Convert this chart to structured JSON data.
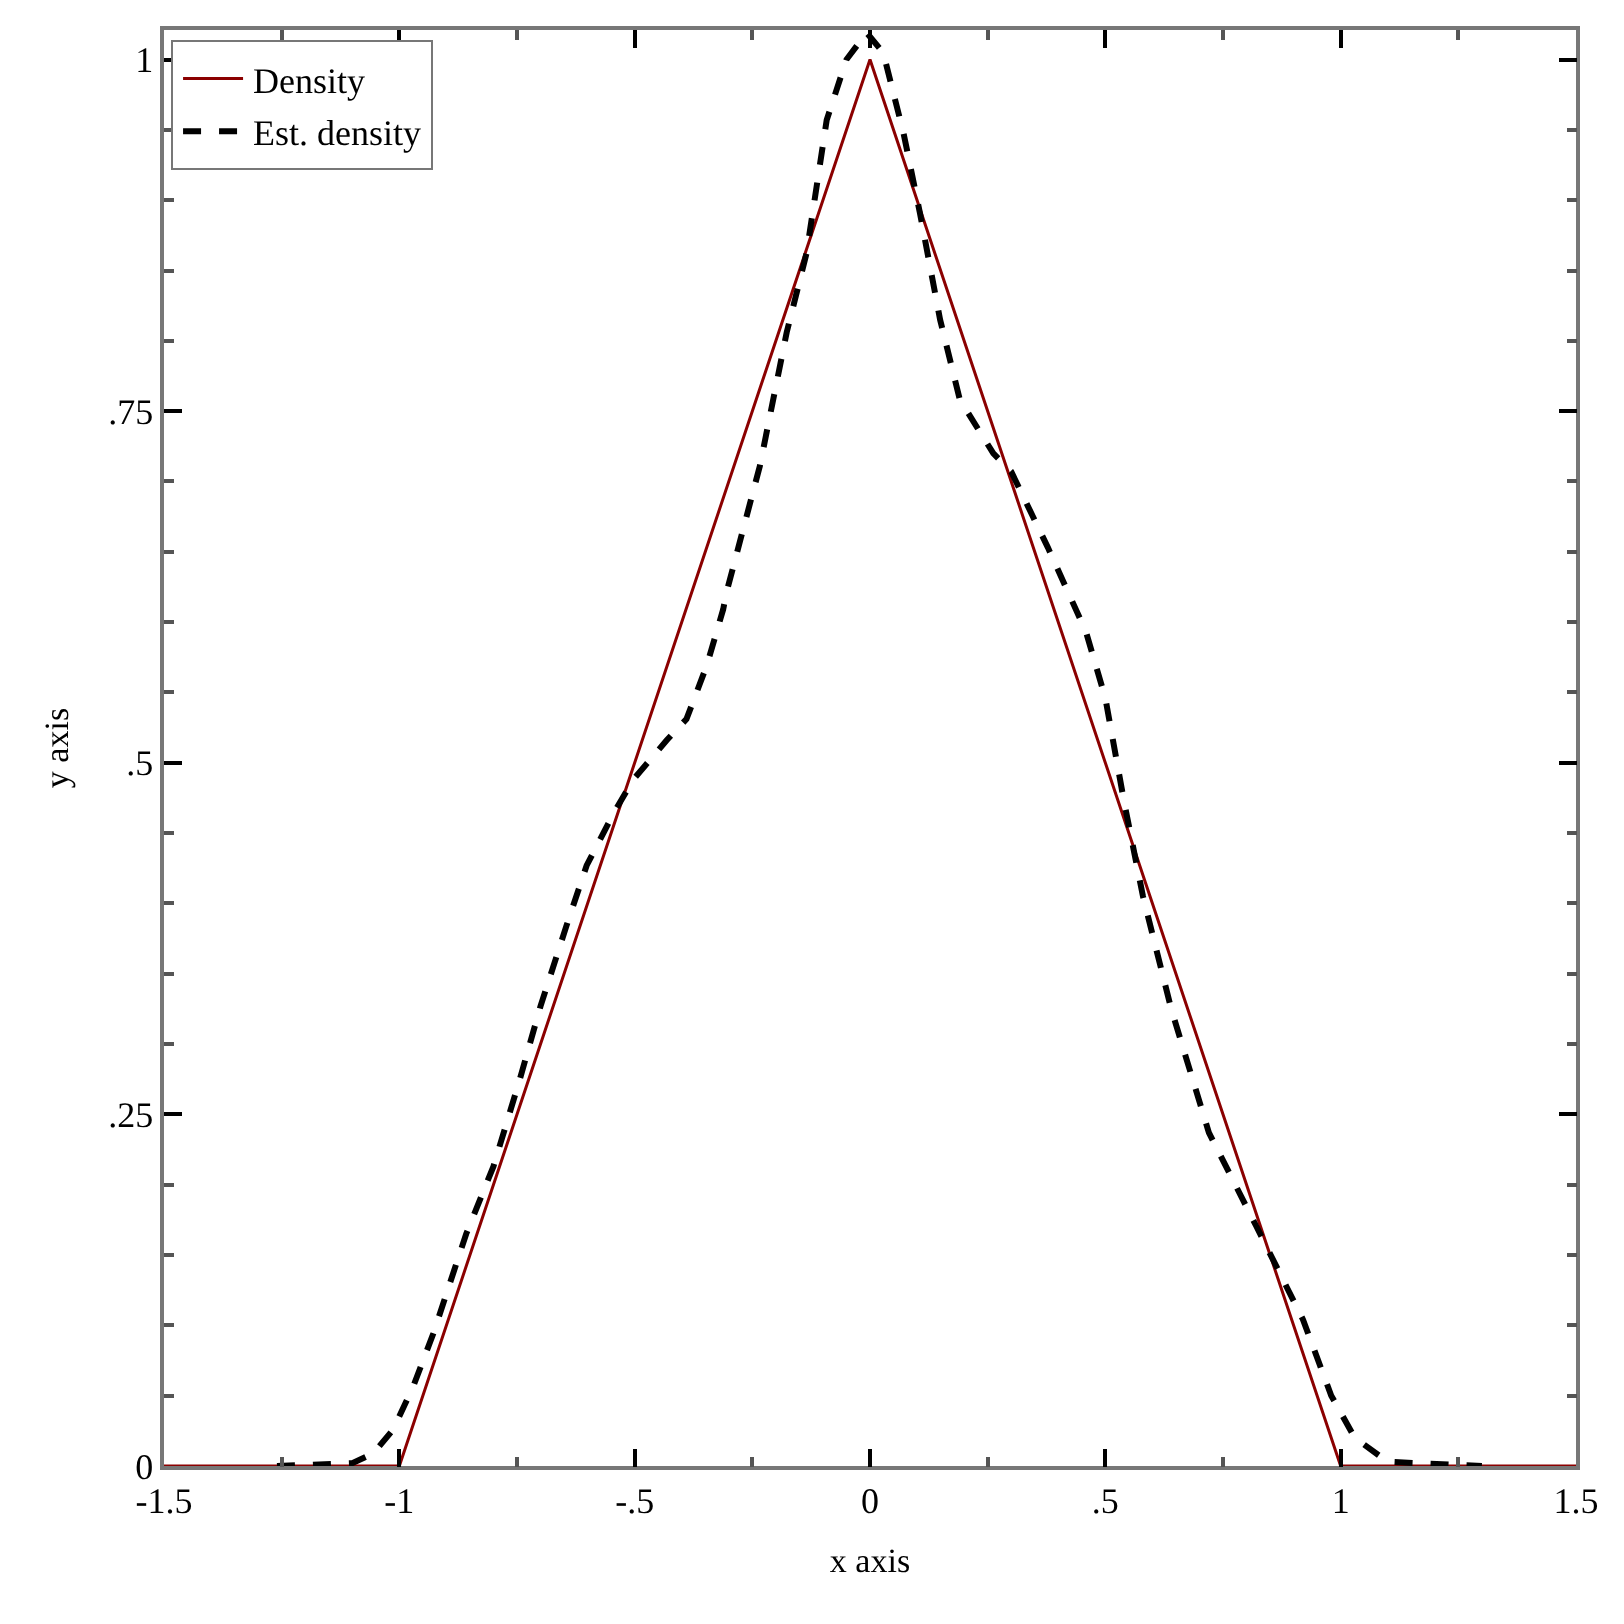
{
  "chart_data": {
    "type": "line",
    "xlabel": "x axis",
    "ylabel": "y axis",
    "xlim": [
      -1.5,
      1.5
    ],
    "ylim": [
      0,
      1.021
    ],
    "xticks": [
      -1.5,
      {
        "value": -1.25,
        "label": null
      },
      -1,
      {
        "value": -0.75,
        "label": null
      },
      {
        "value": -0.5,
        "label": "-.5"
      },
      {
        "value": -0.25,
        "label": null
      },
      0,
      {
        "value": 0.25,
        "label": null
      },
      {
        "value": 0.5,
        "label": ".5"
      },
      {
        "value": 0.75,
        "label": null
      },
      1,
      {
        "value": 1.25,
        "label": null
      },
      1.5
    ],
    "yticks": [
      0,
      {
        "value": 0.05,
        "label": null
      },
      {
        "value": 0.1,
        "label": null
      },
      {
        "value": 0.15,
        "label": null
      },
      {
        "value": 0.2,
        "label": null
      },
      {
        "value": 0.25,
        "label": ".25"
      },
      {
        "value": 0.3,
        "label": null
      },
      {
        "value": 0.35,
        "label": null
      },
      {
        "value": 0.4,
        "label": null
      },
      {
        "value": 0.45,
        "label": null
      },
      {
        "value": 0.5,
        "label": ".5"
      },
      {
        "value": 0.55,
        "label": null
      },
      {
        "value": 0.6,
        "label": null
      },
      {
        "value": 0.65,
        "label": null
      },
      {
        "value": 0.7,
        "label": null
      },
      {
        "value": 0.75,
        "label": ".75"
      },
      {
        "value": 0.8,
        "label": null
      },
      {
        "value": 0.85,
        "label": null
      },
      {
        "value": 0.9,
        "label": null
      },
      {
        "value": 0.95,
        "label": null
      },
      1
    ],
    "grid": false,
    "legend": "top left",
    "marker": "none",
    "series": [
      {
        "name": "Density",
        "color": "#8b0000",
        "line_style": "solid",
        "x": [
          -1.5,
          -1,
          0,
          1,
          1.5
        ],
        "values": [
          0,
          0,
          1,
          0,
          0
        ]
      },
      {
        "name": "Est. density",
        "color": "#000000",
        "line_style": "dashed",
        "x": [
          -1.26,
          -1.1,
          -1.055,
          -1.013,
          -0.97,
          -0.928,
          -0.858,
          -0.8,
          -0.744,
          -0.7,
          -0.645,
          -0.602,
          -0.545,
          -0.503,
          -0.432,
          -0.39,
          -0.347,
          -0.312,
          -0.305,
          -0.234,
          -0.177,
          -0.135,
          -0.092,
          -0.05,
          -0.007,
          0.028,
          0.071,
          0.106,
          0.149,
          0.191,
          0.262,
          0.3,
          0.378,
          0.459,
          0.5,
          0.54,
          0.58,
          0.64,
          0.72,
          0.82,
          0.92,
          0.98,
          1.03,
          1.1,
          1.3
        ],
        "values": [
          0,
          0.002,
          0.009,
          0.026,
          0.057,
          0.094,
          0.165,
          0.213,
          0.275,
          0.327,
          0.384,
          0.427,
          0.464,
          0.488,
          0.516,
          0.531,
          0.569,
          0.609,
          0.621,
          0.711,
          0.806,
          0.862,
          0.957,
          1.0,
          1.019,
          1.005,
          0.948,
          0.891,
          0.815,
          0.758,
          0.72,
          0.707,
          0.653,
          0.593,
          0.546,
          0.472,
          0.405,
          0.325,
          0.237,
          0.171,
          0.104,
          0.05,
          0.02,
          0.003,
          0
        ]
      }
    ]
  }
}
